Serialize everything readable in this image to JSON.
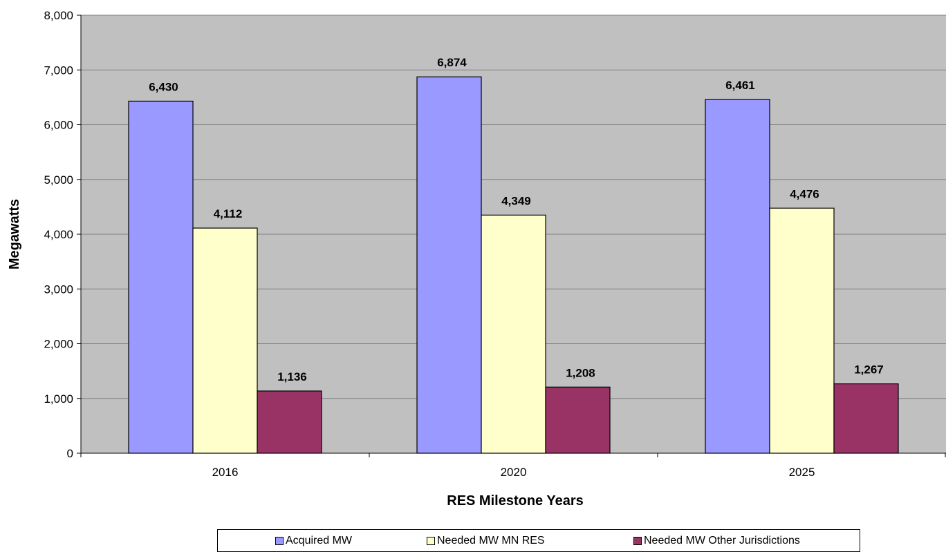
{
  "chart_data": {
    "type": "bar",
    "title": "",
    "xlabel": "RES Milestone Years",
    "ylabel": "Megawatts",
    "categories": [
      "2016",
      "2020",
      "2025"
    ],
    "series": [
      {
        "name": "Acquired MW",
        "values": [
          6430,
          6874,
          6461
        ],
        "labels": [
          "6,430",
          "6,874",
          "6,461"
        ],
        "color": "#9999ff"
      },
      {
        "name": "Needed MW MN RES",
        "values": [
          4112,
          4349,
          4476
        ],
        "labels": [
          "4,112",
          "4,349",
          "4,476"
        ],
        "color": "#ffffcc"
      },
      {
        "name": "Needed MW Other Jurisdictions",
        "values": [
          1136,
          1208,
          1267
        ],
        "labels": [
          "1,136",
          "1,208",
          "1,267"
        ],
        "color": "#993366"
      }
    ],
    "ylim": [
      0,
      8000
    ],
    "yticks": [
      "0",
      "1,000",
      "2,000",
      "3,000",
      "4,000",
      "5,000",
      "6,000",
      "7,000",
      "8,000"
    ],
    "grid": true,
    "plot_background": "#c0c0c0",
    "legend_position": "bottom"
  }
}
